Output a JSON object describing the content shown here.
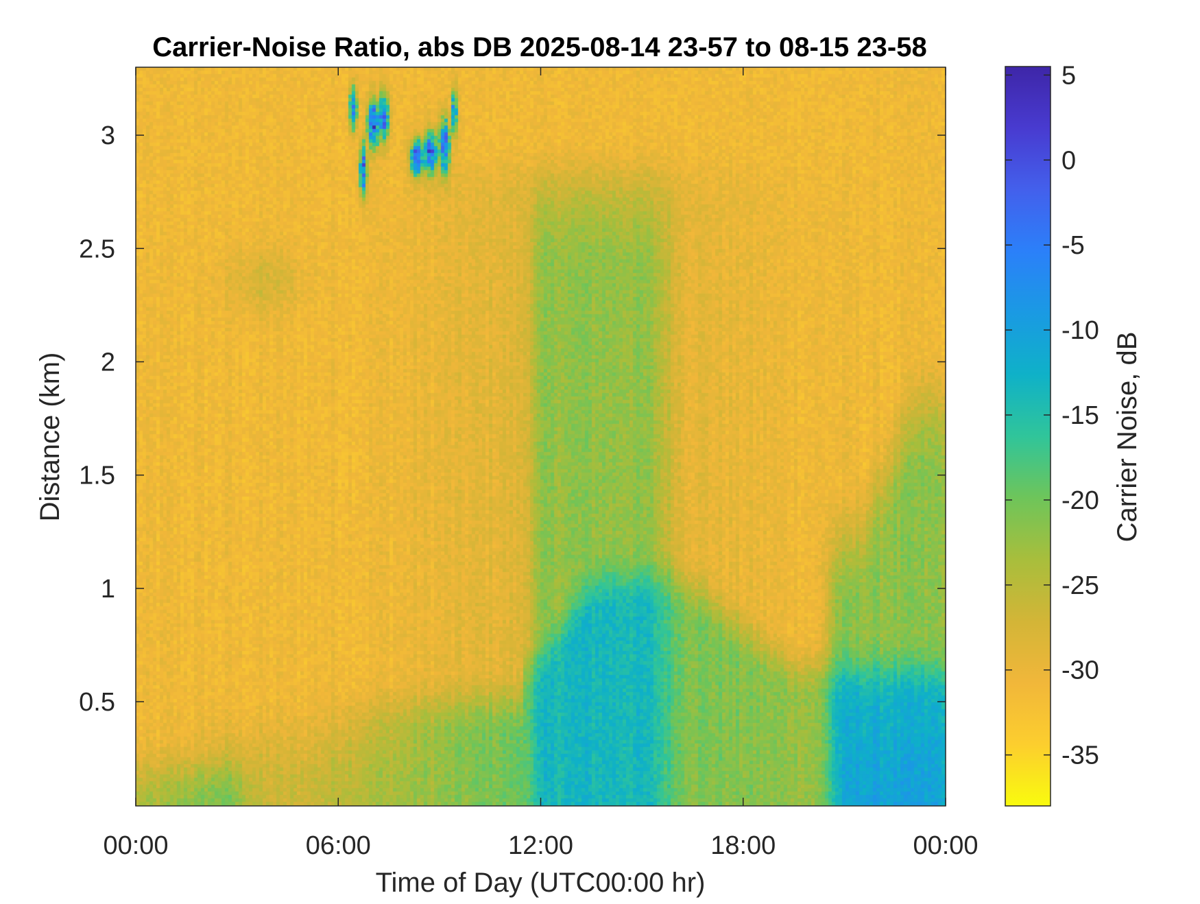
{
  "chart_data": {
    "type": "heatmap",
    "title": "Carrier-Noise Ratio, abs DB 2025-08-14 23-57 to 08-15 23-58",
    "xlabel": "Time of Day (UTC00:00 hr)",
    "ylabel": "Distance (km)",
    "colorbar_label": "Carrier Noise, dB",
    "x_ticks": [
      "00:00",
      "06:00",
      "12:00",
      "18:00",
      "00:00"
    ],
    "x_tick_hours": [
      0,
      6,
      12,
      18,
      24
    ],
    "xlim_hours": [
      0,
      24
    ],
    "y_ticks": [
      "0.5",
      "1",
      "1.5",
      "2",
      "2.5",
      "3"
    ],
    "y_tick_values": [
      0.5,
      1,
      1.5,
      2,
      2.5,
      3
    ],
    "ylim_km": [
      0.04,
      3.3
    ],
    "colorbar_ticks": [
      "5",
      "0",
      "-5",
      "-10",
      "-15",
      "-20",
      "-25",
      "-30",
      "-35"
    ],
    "colorbar_tick_values": [
      5,
      0,
      -5,
      -10,
      -15,
      -20,
      -25,
      -30,
      -35
    ],
    "clim_db": [
      -38,
      5.5
    ],
    "colormap": [
      "#f9fb0e",
      "#fcce2e",
      "#f1b73a",
      "#d3b537",
      "#a8be3c",
      "#6ec55a",
      "#30c59a",
      "#0fb1c8",
      "#1a9ae3",
      "#2b80f9",
      "#4360ec",
      "#483bd0",
      "#3e26a8"
    ],
    "grid": false,
    "field_description": {
      "background_db": -31,
      "features": [
        {
          "t_hours": [
            5.9,
            9.7
          ],
          "d_km": [
            2.7,
            3.25
          ],
          "db_range": [
            -20,
            5
          ]
        },
        {
          "t_hours": [
            11.5,
            24
          ],
          "d_km": [
            0.04,
            1.0
          ],
          "db_range": [
            -23,
            -18
          ]
        },
        {
          "t_hours": [
            20.5,
            24
          ],
          "d_km": [
            0.04,
            2.1
          ],
          "db_range": [
            -24,
            -17
          ]
        },
        {
          "t_hours": [
            0,
            3.5
          ],
          "d_km": [
            0.04,
            0.3
          ],
          "db_range": [
            -25,
            -22
          ]
        }
      ]
    }
  }
}
